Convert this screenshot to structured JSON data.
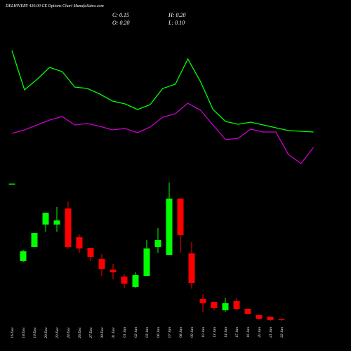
{
  "chart_data": {
    "type": "candlestick",
    "title": "DELHIVERY 430.00 CE Options Chart MunafaSutra.com",
    "summary": [
      "C: 0.15",
      "H: 0.20",
      "O: 0.20",
      "L: 0.10"
    ],
    "categories": [
      "16 Dec",
      "18 Dec",
      "19 Dec",
      "20 Dec",
      "23 Dec",
      "24 Dec",
      "26 Dec",
      "27 Dec",
      "30 Dec",
      "31 Dec",
      "01 Jan",
      "02 Jan",
      "03 Jan",
      "06 Jan",
      "07 Jan",
      "08 Jan",
      "09 Jan",
      "10 Jan",
      "13 Jan",
      "14 Jan",
      "15 Jan",
      "16 Jan",
      "20 Jan",
      "21 Jan",
      "22 Jan"
    ],
    "open": [
      7.3,
      3.26,
      4.0,
      5.19,
      5.19,
      6.04,
      4.52,
      3.96,
      3.37,
      2.81,
      2.44,
      1.89,
      2.48,
      4.0,
      3.59,
      6.56,
      3.67,
      1.26,
      1.11,
      0.67,
      1.15,
      0.74,
      0.41,
      0.33,
      0.2
    ],
    "high": [
      7.35,
      3.85,
      4.74,
      5.81,
      6.11,
      6.41,
      4.67,
      3.96,
      3.63,
      3.11,
      2.59,
      2.67,
      4.37,
      5.0,
      7.41,
      6.56,
      4.26,
      1.52,
      1.11,
      1.33,
      1.3,
      0.74,
      0.41,
      0.33,
      0.2
    ],
    "low": [
      7.3,
      3.22,
      4.0,
      4.81,
      4.81,
      3.93,
      3.7,
      3.26,
      2.48,
      2.3,
      1.85,
      1.85,
      2.48,
      3.7,
      3.59,
      3.7,
      1.81,
      0.59,
      0.67,
      0.59,
      0.67,
      0.44,
      0.18,
      0.11,
      0.1
    ],
    "close": [
      7.35,
      3.78,
      4.74,
      5.81,
      5.41,
      4.0,
      3.93,
      3.48,
      2.85,
      2.67,
      2.07,
      2.52,
      3.93,
      4.37,
      6.56,
      4.63,
      2.11,
      1.04,
      0.78,
      1.04,
      0.74,
      0.48,
      0.22,
      0.15,
      0.15
    ],
    "up_color": "#00ff00",
    "down_color": "#ff0000",
    "ylim": [
      0,
      7.5
    ],
    "y2lim": [
      0,
      10
    ],
    "series": [
      {
        "color": "#00ff00",
        "axis": "y2",
        "values": [
          8.9,
          6.1,
          6.85,
          7.7,
          7.4,
          6.3,
          6.2,
          5.8,
          5.3,
          5.1,
          4.7,
          5.05,
          6.2,
          6.5,
          8.3,
          6.7,
          4.7,
          3.85,
          3.65,
          3.8,
          3.6,
          3.4,
          3.2,
          3.15,
          3.1
        ]
      },
      {
        "color": "#cc00cc",
        "axis": "y2",
        "values": [
          3,
          3.25,
          3.6,
          3.95,
          4.2,
          3.6,
          3.7,
          3.5,
          3.25,
          3.35,
          3.05,
          3.45,
          4.15,
          4.4,
          5.15,
          4.65,
          3.6,
          2.55,
          2.65,
          3.3,
          3.1,
          3.1,
          1.5,
          0.85,
          2
        ]
      }
    ]
  }
}
